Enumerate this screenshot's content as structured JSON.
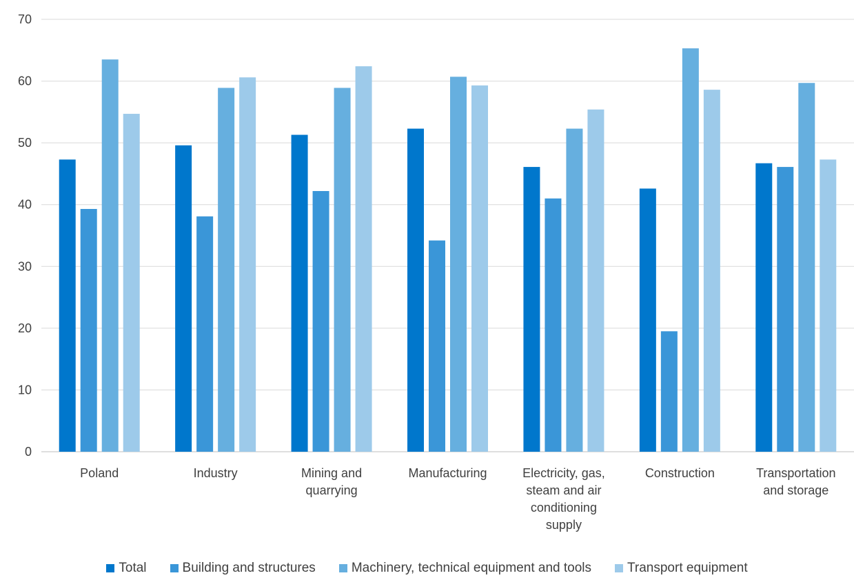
{
  "chart_data": {
    "type": "bar",
    "title": "",
    "xlabel": "",
    "ylabel": "",
    "ylim": [
      0,
      70
    ],
    "yticks": [
      0,
      10,
      20,
      30,
      40,
      50,
      60,
      70
    ],
    "grid": true,
    "legend_position": "bottom",
    "categories": [
      [
        "Poland"
      ],
      [
        "Industry"
      ],
      [
        "Mining and",
        "quarrying"
      ],
      [
        "Manufacturing"
      ],
      [
        "Electricity, gas,",
        "steam and air",
        "conditioning",
        "supply"
      ],
      [
        "Construction"
      ],
      [
        "Transportation",
        "and storage"
      ]
    ],
    "series": [
      {
        "name": "Total",
        "color": "#0077CC",
        "values": [
          47.3,
          49.6,
          51.3,
          52.3,
          46.1,
          42.6,
          46.7
        ]
      },
      {
        "name": "Building and structures",
        "color": "#3A96D8",
        "values": [
          39.3,
          38.1,
          42.2,
          34.2,
          41.0,
          19.5,
          46.1
        ]
      },
      {
        "name": "Machinery, technical equipment and tools",
        "color": "#66AFDF",
        "values": [
          63.5,
          58.9,
          58.9,
          60.7,
          52.3,
          65.3,
          59.7
        ]
      },
      {
        "name": "Transport equipment",
        "color": "#9DCAEA",
        "values": [
          54.7,
          60.6,
          62.4,
          59.3,
          55.4,
          58.6,
          47.3
        ]
      }
    ]
  }
}
